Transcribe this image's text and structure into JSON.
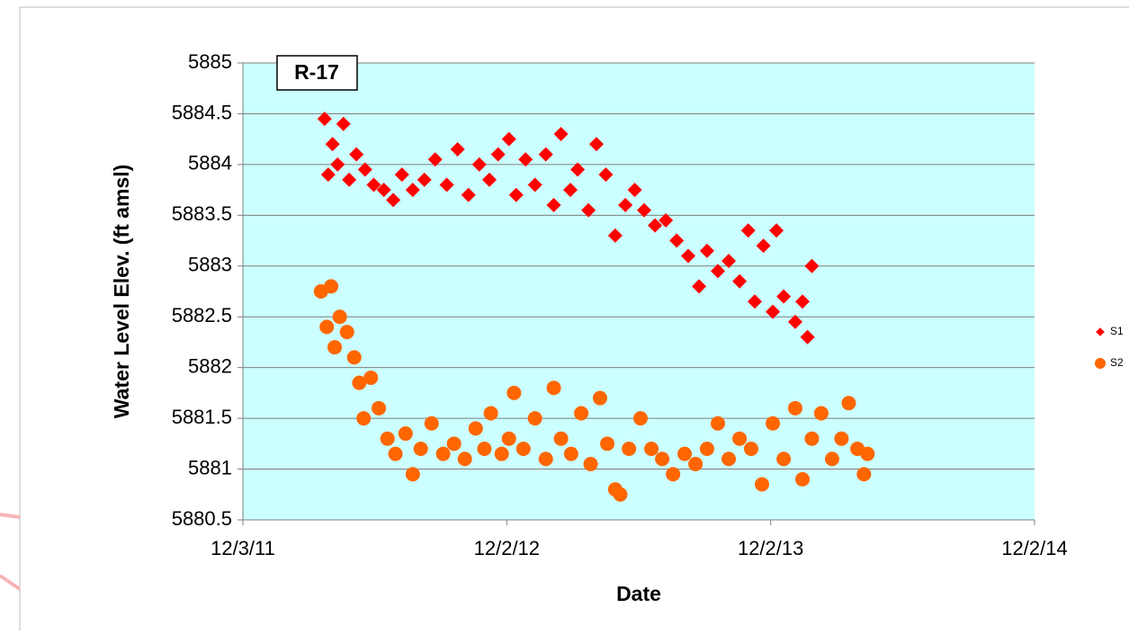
{
  "chart_data": {
    "type": "scatter",
    "annotation": "R-17",
    "xlabel": "Date",
    "ylabel": "Water Level Elev. (ft amsl)",
    "xlim": [
      "2011-12-03",
      "2014-12-02"
    ],
    "xticks": [
      {
        "value": "2011-12-03",
        "label": "12/3/11"
      },
      {
        "value": "2012-12-02",
        "label": "12/2/12"
      },
      {
        "value": "2013-12-02",
        "label": "12/2/13"
      },
      {
        "value": "2014-12-02",
        "label": "12/2/14"
      }
    ],
    "ylim": [
      5880.5,
      5885
    ],
    "yticks": [
      5880.5,
      5881,
      5881.5,
      5882,
      5882.5,
      5883,
      5883.5,
      5884,
      5884.5,
      5885
    ],
    "grid": true,
    "legend": "right",
    "series": [
      {
        "name": "S1",
        "color": "#ff0000",
        "marker": "diamond",
        "x": [
          "2012-03-25",
          "2012-03-30",
          "2012-04-05",
          "2012-04-12",
          "2012-04-20",
          "2012-04-28",
          "2012-05-08",
          "2012-05-20",
          "2012-06-01",
          "2012-06-15",
          "2012-06-28",
          "2012-07-10",
          "2012-07-25",
          "2012-08-10",
          "2012-08-25",
          "2012-09-10",
          "2012-09-25",
          "2012-10-10",
          "2012-10-25",
          "2012-11-08",
          "2012-11-20",
          "2012-12-05",
          "2012-12-15",
          "2012-12-28",
          "2013-01-10",
          "2013-01-25",
          "2013-02-05",
          "2013-02-15",
          "2013-02-28",
          "2013-03-10",
          "2013-03-25",
          "2013-04-05",
          "2013-04-18",
          "2013-05-01",
          "2013-05-15",
          "2013-05-28",
          "2013-06-10",
          "2013-06-25",
          "2013-07-10",
          "2013-07-25",
          "2013-08-10",
          "2013-08-25",
          "2013-09-05",
          "2013-09-20",
          "2013-10-05",
          "2013-10-20",
          "2013-11-01",
          "2013-11-10",
          "2013-11-22",
          "2013-12-05",
          "2013-12-10",
          "2013-12-20",
          "2014-01-05",
          "2014-01-15",
          "2014-01-22",
          "2014-01-28"
        ],
        "values": [
          5884.45,
          5883.9,
          5884.2,
          5884.0,
          5884.4,
          5883.85,
          5884.1,
          5883.95,
          5883.8,
          5883.75,
          5883.65,
          5883.9,
          5883.75,
          5883.85,
          5884.05,
          5883.8,
          5884.15,
          5883.7,
          5884.0,
          5883.85,
          5884.1,
          5884.25,
          5883.7,
          5884.05,
          5883.8,
          5884.1,
          5883.6,
          5884.3,
          5883.75,
          5883.95,
          5883.55,
          5884.2,
          5883.9,
          5883.3,
          5883.6,
          5883.75,
          5883.55,
          5883.4,
          5883.45,
          5883.25,
          5883.1,
          5882.8,
          5883.15,
          5882.95,
          5883.05,
          5882.85,
          5883.35,
          5882.65,
          5883.2,
          5882.55,
          5883.35,
          5882.7,
          5882.45,
          5882.65,
          5882.3,
          5883.0
        ]
      },
      {
        "name": "S2",
        "color": "#ff6600",
        "marker": "circle",
        "x": [
          "2012-03-20",
          "2012-03-28",
          "2012-04-03",
          "2012-04-08",
          "2012-04-15",
          "2012-04-25",
          "2012-05-05",
          "2012-05-12",
          "2012-05-18",
          "2012-05-28",
          "2012-06-08",
          "2012-06-20",
          "2012-07-01",
          "2012-07-15",
          "2012-07-25",
          "2012-08-05",
          "2012-08-20",
          "2012-09-05",
          "2012-09-20",
          "2012-10-05",
          "2012-10-20",
          "2012-11-01",
          "2012-11-10",
          "2012-11-25",
          "2012-12-05",
          "2012-12-12",
          "2012-12-25",
          "2013-01-10",
          "2013-01-25",
          "2013-02-05",
          "2013-02-15",
          "2013-03-01",
          "2013-03-15",
          "2013-03-28",
          "2013-04-10",
          "2013-04-20",
          "2013-05-01",
          "2013-05-08",
          "2013-05-20",
          "2013-06-05",
          "2013-06-20",
          "2013-07-05",
          "2013-07-20",
          "2013-08-05",
          "2013-08-20",
          "2013-09-05",
          "2013-09-20",
          "2013-10-05",
          "2013-10-20",
          "2013-11-05",
          "2013-11-20",
          "2013-12-05",
          "2013-12-20",
          "2014-01-05",
          "2014-01-15",
          "2014-01-28",
          "2014-02-10",
          "2014-02-25",
          "2014-03-10",
          "2014-03-20",
          "2014-04-01",
          "2014-04-10",
          "2014-04-15"
        ],
        "values": [
          5882.75,
          5882.4,
          5882.8,
          5882.2,
          5882.5,
          5882.35,
          5882.1,
          5881.85,
          5881.5,
          5881.9,
          5881.6,
          5881.3,
          5881.15,
          5881.35,
          5880.95,
          5881.2,
          5881.45,
          5881.15,
          5881.25,
          5881.1,
          5881.4,
          5881.2,
          5881.55,
          5881.15,
          5881.3,
          5881.75,
          5881.2,
          5881.5,
          5881.1,
          5881.8,
          5881.3,
          5881.15,
          5881.55,
          5881.05,
          5881.7,
          5881.25,
          5880.8,
          5880.75,
          5881.2,
          5881.5,
          5881.2,
          5881.1,
          5880.95,
          5881.15,
          5881.05,
          5881.2,
          5881.45,
          5881.1,
          5881.3,
          5881.2,
          5880.85,
          5881.45,
          5881.1,
          5881.6,
          5880.9,
          5881.3,
          5881.55,
          5881.1,
          5881.3,
          5881.65,
          5881.2,
          5880.95,
          5881.15
        ]
      }
    ]
  }
}
